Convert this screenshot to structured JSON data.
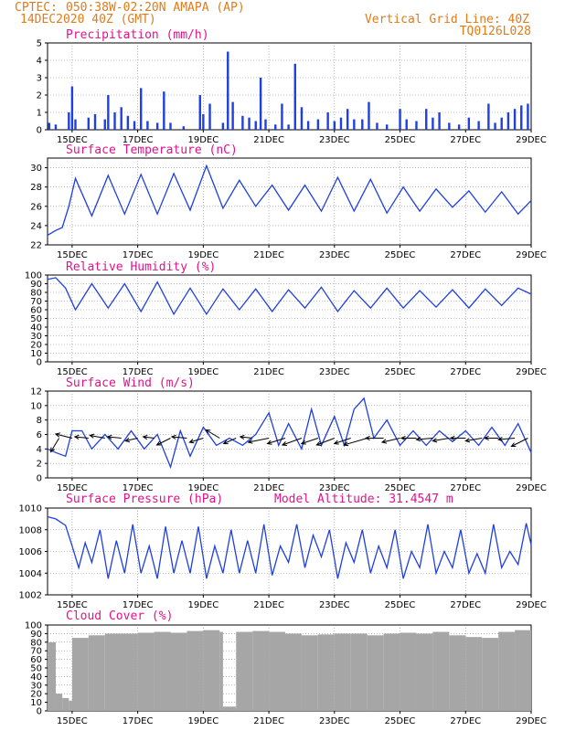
{
  "header": {
    "source": "CPTEC:",
    "location": "050:38W-02:20N  AMAPA (AP)",
    "init": "14DEC2020 40Z (GMT)",
    "grid_note": "Vertical Grid Line: 40Z",
    "model": "TQ0126L028"
  },
  "colors": {
    "header": "#e07b1a",
    "titles": "#e0138c",
    "series": "#1f3fe0",
    "cloud": "#a6a6a6",
    "arrows": "#000000"
  },
  "x_axis": {
    "ticks": [
      "15DEC",
      "17DEC",
      "19DEC",
      "21DEC",
      "23DEC",
      "25DEC",
      "27DEC",
      "29DEC"
    ],
    "start_day": 14.25,
    "end_day": 29.0,
    "grid": "dotted"
  },
  "chart_data": [
    {
      "type": "bar",
      "title": "Precipitation (mm/h)",
      "ylim": [
        0,
        5
      ],
      "yticks": [
        0,
        1,
        2,
        3,
        4,
        5
      ],
      "color": "#1f3fe0",
      "peaks": [
        [
          14.3,
          0.4
        ],
        [
          14.5,
          0.3
        ],
        [
          14.9,
          1.0
        ],
        [
          15.0,
          2.5
        ],
        [
          15.1,
          0.6
        ],
        [
          15.5,
          0.7
        ],
        [
          15.7,
          0.9
        ],
        [
          16.0,
          0.6
        ],
        [
          16.1,
          2.0
        ],
        [
          16.3,
          1.0
        ],
        [
          16.5,
          1.3
        ],
        [
          16.7,
          0.8
        ],
        [
          16.9,
          0.5
        ],
        [
          17.1,
          2.4
        ],
        [
          17.3,
          0.5
        ],
        [
          17.6,
          0.4
        ],
        [
          17.8,
          2.2
        ],
        [
          18.0,
          0.4
        ],
        [
          18.4,
          0.2
        ],
        [
          18.9,
          2.0
        ],
        [
          19.0,
          0.9
        ],
        [
          19.2,
          1.5
        ],
        [
          19.6,
          0.4
        ],
        [
          19.75,
          4.5
        ],
        [
          19.9,
          1.6
        ],
        [
          20.2,
          0.8
        ],
        [
          20.4,
          0.7
        ],
        [
          20.6,
          0.5
        ],
        [
          20.75,
          3.0
        ],
        [
          20.9,
          0.6
        ],
        [
          21.2,
          0.3
        ],
        [
          21.4,
          1.5
        ],
        [
          21.6,
          0.3
        ],
        [
          21.8,
          3.8
        ],
        [
          22.0,
          1.3
        ],
        [
          22.2,
          0.5
        ],
        [
          22.5,
          0.6
        ],
        [
          22.8,
          1.0
        ],
        [
          23.0,
          0.5
        ],
        [
          23.2,
          0.7
        ],
        [
          23.4,
          1.2
        ],
        [
          23.6,
          0.6
        ],
        [
          23.85,
          0.6
        ],
        [
          24.05,
          1.6
        ],
        [
          24.3,
          0.4
        ],
        [
          24.6,
          0.3
        ],
        [
          25.0,
          1.2
        ],
        [
          25.2,
          0.6
        ],
        [
          25.5,
          0.5
        ],
        [
          25.8,
          1.2
        ],
        [
          26.0,
          0.7
        ],
        [
          26.2,
          1.0
        ],
        [
          26.5,
          0.4
        ],
        [
          26.8,
          0.3
        ],
        [
          27.1,
          0.7
        ],
        [
          27.4,
          0.5
        ],
        [
          27.7,
          1.5
        ],
        [
          27.9,
          0.4
        ],
        [
          28.1,
          0.7
        ],
        [
          28.3,
          1.0
        ],
        [
          28.5,
          1.2
        ],
        [
          28.7,
          1.4
        ],
        [
          28.9,
          1.5
        ]
      ]
    },
    {
      "type": "line",
      "title": "Surface Temperature (nC)",
      "ylim": [
        22,
        31
      ],
      "yticks": [
        22,
        24,
        26,
        28,
        30
      ],
      "color": "#1f3fe0",
      "x": [
        14.25,
        14.5,
        14.7,
        14.9,
        15.1,
        15.6,
        16.1,
        16.6,
        17.1,
        17.6,
        18.1,
        18.6,
        19.1,
        19.6,
        20.1,
        20.6,
        21.1,
        21.6,
        22.1,
        22.6,
        23.1,
        23.6,
        24.1,
        24.6,
        25.1,
        25.6,
        26.1,
        26.6,
        27.1,
        27.6,
        28.1,
        28.6,
        29.0
      ],
      "y": [
        23.0,
        23.5,
        23.8,
        26.0,
        28.9,
        25.0,
        29.2,
        25.2,
        29.3,
        25.2,
        29.4,
        25.6,
        30.2,
        25.8,
        28.7,
        26.0,
        28.2,
        25.6,
        28.2,
        25.5,
        29.0,
        25.5,
        28.8,
        25.3,
        28.0,
        25.5,
        27.8,
        25.9,
        27.6,
        25.4,
        27.5,
        25.2,
        26.6
      ]
    },
    {
      "type": "line",
      "title": "Relative Humidity (%)",
      "ylim": [
        0,
        100
      ],
      "yticks": [
        0,
        10,
        20,
        30,
        40,
        50,
        60,
        70,
        80,
        90,
        100
      ],
      "color": "#1f3fe0",
      "x": [
        14.25,
        14.5,
        14.8,
        15.1,
        15.6,
        16.1,
        16.6,
        17.1,
        17.6,
        18.1,
        18.6,
        19.1,
        19.6,
        20.1,
        20.6,
        21.1,
        21.6,
        22.1,
        22.6,
        23.1,
        23.6,
        24.1,
        24.6,
        25.1,
        25.6,
        26.1,
        26.6,
        27.1,
        27.6,
        28.1,
        28.6,
        29.0
      ],
      "y": [
        95,
        97,
        85,
        60,
        90,
        62,
        90,
        58,
        92,
        55,
        85,
        55,
        84,
        60,
        84,
        58,
        83,
        62,
        86,
        58,
        82,
        62,
        85,
        62,
        82,
        63,
        83,
        62,
        84,
        65,
        85,
        78
      ]
    },
    {
      "type": "line",
      "title": "Surface Wind (m/s)",
      "ylim": [
        0,
        12
      ],
      "yticks": [
        0,
        2,
        4,
        6,
        8,
        10,
        12
      ],
      "color": "#1f3fe0",
      "x": [
        14.25,
        14.5,
        14.8,
        15.0,
        15.3,
        15.6,
        16.0,
        16.4,
        16.8,
        17.2,
        17.6,
        18.0,
        18.3,
        18.6,
        19.0,
        19.4,
        19.8,
        20.2,
        20.6,
        21.0,
        21.3,
        21.6,
        22.0,
        22.3,
        22.6,
        23.0,
        23.3,
        23.6,
        23.9,
        24.2,
        24.6,
        25.0,
        25.4,
        25.8,
        26.2,
        26.6,
        27.0,
        27.4,
        27.8,
        28.2,
        28.6,
        29.0
      ],
      "y": [
        4.0,
        3.5,
        3.0,
        6.5,
        6.5,
        4.0,
        6.0,
        4.0,
        6.5,
        4.0,
        6.0,
        1.5,
        6.5,
        3.0,
        7.0,
        4.5,
        5.5,
        4.5,
        6.0,
        9.0,
        4.5,
        7.5,
        4.0,
        9.5,
        4.5,
        8.5,
        4.5,
        9.5,
        11.0,
        5.5,
        8.0,
        4.5,
        6.5,
        4.5,
        6.5,
        5.0,
        6.5,
        4.5,
        7.0,
        4.5,
        7.5,
        3.5
      ],
      "arrows": [
        {
          "day": 14.6,
          "u": -3.0,
          "v": -5.0
        },
        {
          "day": 15.0,
          "u": -6.0,
          "v": 1.5
        },
        {
          "day": 15.5,
          "u": -5.0,
          "v": 0.5
        },
        {
          "day": 16.0,
          "u": -5.5,
          "v": 1.0
        },
        {
          "day": 16.5,
          "u": -5.0,
          "v": 0.5
        },
        {
          "day": 17.0,
          "u": -4.5,
          "v": -1.0
        },
        {
          "day": 17.5,
          "u": -4.0,
          "v": 0.5
        },
        {
          "day": 18.0,
          "u": -5.0,
          "v": -2.5
        },
        {
          "day": 18.5,
          "u": -5.5,
          "v": 0.5
        },
        {
          "day": 19.0,
          "u": -5.0,
          "v": -1.5
        },
        {
          "day": 19.5,
          "u": -5.0,
          "v": 3.0
        },
        {
          "day": 20.0,
          "u": -4.5,
          "v": -2.0
        },
        {
          "day": 20.5,
          "u": -4.5,
          "v": 0.5
        },
        {
          "day": 21.0,
          "u": -7.5,
          "v": -1.5
        },
        {
          "day": 21.5,
          "u": -6.5,
          "v": -2.0
        },
        {
          "day": 22.0,
          "u": -7.0,
          "v": -2.5
        },
        {
          "day": 22.5,
          "u": -6.0,
          "v": -2.0
        },
        {
          "day": 23.0,
          "u": -6.5,
          "v": -2.5
        },
        {
          "day": 23.5,
          "u": -6.0,
          "v": -2.0
        },
        {
          "day": 24.0,
          "u": -8.5,
          "v": -2.5
        },
        {
          "day": 24.5,
          "u": -6.5,
          "v": 0.0
        },
        {
          "day": 25.0,
          "u": -6.5,
          "v": -1.5
        },
        {
          "day": 25.5,
          "u": -5.5,
          "v": 0.0
        },
        {
          "day": 26.0,
          "u": -6.0,
          "v": -0.5
        },
        {
          "day": 26.5,
          "u": -6.0,
          "v": -1.0
        },
        {
          "day": 27.0,
          "u": -5.5,
          "v": 0.0
        },
        {
          "day": 27.5,
          "u": -6.0,
          "v": -1.0
        },
        {
          "day": 28.0,
          "u": -5.0,
          "v": 0.0
        },
        {
          "day": 28.5,
          "u": -6.0,
          "v": -0.5
        },
        {
          "day": 28.9,
          "u": -6.0,
          "v": -3.0
        }
      ]
    },
    {
      "type": "line",
      "title": "Surface Pressure (hPa)",
      "note": "Model Altitude: 31.4547 m",
      "ylim": [
        1002,
        1010
      ],
      "yticks": [
        1002,
        1004,
        1006,
        1008,
        1010
      ],
      "color": "#1f3fe0",
      "x": [
        14.25,
        14.5,
        14.8,
        15.0,
        15.2,
        15.4,
        15.6,
        15.85,
        16.1,
        16.35,
        16.6,
        16.85,
        17.1,
        17.35,
        17.6,
        17.85,
        18.1,
        18.35,
        18.6,
        18.85,
        19.1,
        19.35,
        19.6,
        19.85,
        20.1,
        20.35,
        20.6,
        20.85,
        21.1,
        21.35,
        21.6,
        21.85,
        22.1,
        22.35,
        22.6,
        22.85,
        23.1,
        23.35,
        23.6,
        23.85,
        24.1,
        24.35,
        24.6,
        24.85,
        25.1,
        25.35,
        25.6,
        25.85,
        26.1,
        26.35,
        26.6,
        26.85,
        27.1,
        27.35,
        27.6,
        27.85,
        28.1,
        28.35,
        28.6,
        28.85,
        29.0
      ],
      "y": [
        1009.2,
        1009.0,
        1008.4,
        1006.5,
        1004.5,
        1006.8,
        1005.0,
        1008.0,
        1003.5,
        1007.0,
        1004.0,
        1008.5,
        1004.0,
        1006.5,
        1003.5,
        1008.3,
        1004.0,
        1007.0,
        1004.0,
        1008.3,
        1003.5,
        1006.5,
        1004.0,
        1008.0,
        1004.0,
        1007.0,
        1004.0,
        1008.5,
        1003.8,
        1006.5,
        1005.0,
        1008.5,
        1004.5,
        1007.5,
        1005.5,
        1008.0,
        1003.5,
        1006.8,
        1005.0,
        1008.0,
        1004.0,
        1006.5,
        1004.5,
        1008.0,
        1003.5,
        1006.0,
        1004.5,
        1008.5,
        1004.0,
        1006.0,
        1004.5,
        1008.0,
        1004.0,
        1005.8,
        1004.0,
        1008.5,
        1004.5,
        1006.0,
        1004.8,
        1008.6,
        1006.6
      ]
    },
    {
      "type": "bar",
      "title": "Cloud Cover (%)",
      "ylim": [
        0,
        100
      ],
      "yticks": [
        0,
        10,
        20,
        30,
        40,
        50,
        60,
        70,
        80,
        90,
        100
      ],
      "color": "#a6a6a6",
      "x": [
        14.25,
        14.5,
        14.7,
        14.9,
        15.0,
        15.5,
        16.0,
        17.0,
        17.5,
        18.0,
        18.5,
        19.0,
        19.5,
        19.6,
        20.0,
        20.5,
        21.0,
        21.5,
        22.0,
        22.5,
        23.0,
        23.5,
        24.0,
        24.5,
        25.0,
        25.5,
        26.0,
        26.5,
        27.0,
        27.5,
        28.0,
        28.5,
        29.0
      ],
      "y": [
        80,
        20,
        15,
        12,
        85,
        88,
        90,
        91,
        92,
        91,
        93,
        94,
        92,
        5,
        92,
        93,
        92,
        90,
        88,
        89,
        90,
        90,
        88,
        90,
        91,
        90,
        92,
        88,
        86,
        85,
        92,
        94,
        92
      ]
    }
  ]
}
